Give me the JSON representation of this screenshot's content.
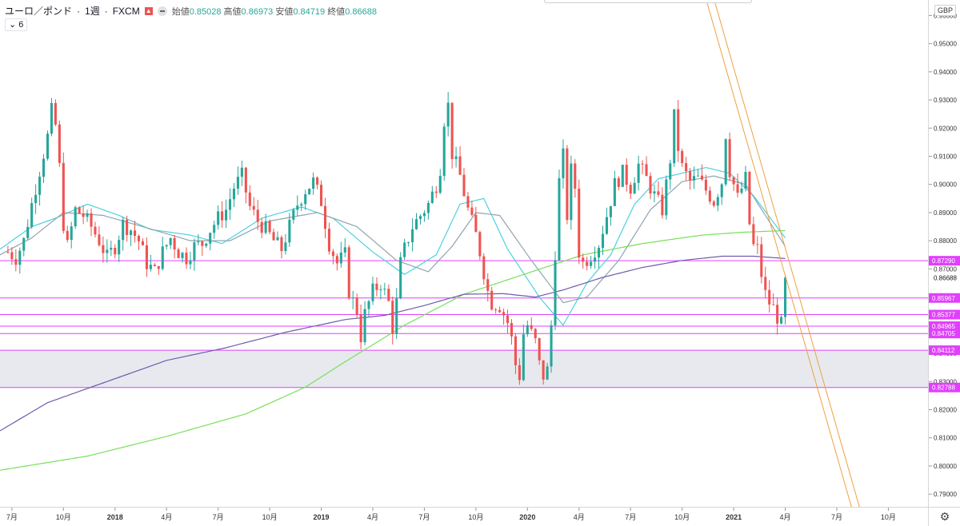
{
  "header": {
    "symbol": "ユーロ／ポンド",
    "interval": "1週",
    "source": "FXCM",
    "open_label": "始値",
    "open": "0.85028",
    "high_label": "高値",
    "high": "0.86973",
    "low_label": "安値",
    "low": "0.84719",
    "close_label": "終値",
    "close": "0.86688",
    "indicator_toggle": "6"
  },
  "axis": {
    "currency": "GBP",
    "settings_icon": "gear-icon"
  },
  "chart_data": {
    "type": "line",
    "subtype": "candlestick",
    "yaxis_ticks": [
      "0.96000",
      "0.95000",
      "0.94000",
      "0.93000",
      "0.92000",
      "0.91000",
      "0.90000",
      "0.89000",
      "0.88000",
      "0.87000",
      "0.86000",
      "0.85000",
      "0.84000",
      "0.83000",
      "0.82000",
      "0.81000",
      "0.80000",
      "0.79000"
    ],
    "ylim": [
      0.7855,
      0.9655
    ],
    "xaxis_ticks": [
      {
        "label": "7月",
        "week": 1
      },
      {
        "label": "10月",
        "week": 14
      },
      {
        "label": "2018",
        "week": 27
      },
      {
        "label": "4月",
        "week": 40
      },
      {
        "label": "7月",
        "week": 53
      },
      {
        "label": "10月",
        "week": 66
      },
      {
        "label": "2019",
        "week": 79
      },
      {
        "label": "4月",
        "week": 92
      },
      {
        "label": "7月",
        "week": 105
      },
      {
        "label": "10月",
        "week": 118
      },
      {
        "label": "2020",
        "week": 131
      },
      {
        "label": "4月",
        "week": 144
      },
      {
        "label": "7月",
        "week": 157
      },
      {
        "label": "10月",
        "week": 170
      },
      {
        "label": "2021",
        "week": 183
      },
      {
        "label": "4月",
        "week": 196
      },
      {
        "label": "7月",
        "week": 209
      },
      {
        "label": "10月",
        "week": 222
      }
    ],
    "xlim": [
      -2,
      232
    ],
    "last_price": "0.86688",
    "horizontal_levels": [
      {
        "label": "0.87290",
        "value": 0.8729
      },
      {
        "label": "0.85967",
        "value": 0.85967
      },
      {
        "label": "0.85377",
        "value": 0.85377
      },
      {
        "label": "0.84965",
        "value": 0.84965
      },
      {
        "label": "0.84705",
        "value": 0.84705
      },
      {
        "label": "0.84112",
        "value": 0.84112
      },
      {
        "label": "0.82788",
        "value": 0.82788
      }
    ],
    "zone": {
      "from": 0.82788,
      "to": 0.84112
    },
    "trendlines": [
      {
        "x1": 176,
        "y1": 0.966,
        "x2": 213,
        "y2": 0.784
      },
      {
        "x1": 178,
        "y1": 0.966,
        "x2": 215,
        "y2": 0.784
      }
    ],
    "ma_anchors": {
      "ma_fast": [
        [
          -2,
          0.877
        ],
        [
          6,
          0.885
        ],
        [
          12,
          0.888
        ],
        [
          20,
          0.893
        ],
        [
          28,
          0.889
        ],
        [
          36,
          0.884
        ],
        [
          46,
          0.882
        ],
        [
          54,
          0.879
        ],
        [
          64,
          0.888
        ],
        [
          74,
          0.892
        ],
        [
          82,
          0.888
        ],
        [
          92,
          0.876
        ],
        [
          100,
          0.868
        ],
        [
          108,
          0.875
        ],
        [
          114,
          0.893
        ],
        [
          120,
          0.895
        ],
        [
          126,
          0.877
        ],
        [
          134,
          0.86
        ],
        [
          140,
          0.85
        ],
        [
          146,
          0.865
        ],
        [
          152,
          0.875
        ],
        [
          158,
          0.893
        ],
        [
          164,
          0.902
        ],
        [
          170,
          0.904
        ],
        [
          176,
          0.906
        ],
        [
          182,
          0.904
        ],
        [
          188,
          0.896
        ],
        [
          196,
          0.881
        ]
      ],
      "ma_slow": [
        [
          -2,
          0.875
        ],
        [
          6,
          0.881
        ],
        [
          14,
          0.89
        ],
        [
          24,
          0.889
        ],
        [
          34,
          0.885
        ],
        [
          46,
          0.88
        ],
        [
          56,
          0.88
        ],
        [
          66,
          0.887
        ],
        [
          78,
          0.89
        ],
        [
          88,
          0.885
        ],
        [
          98,
          0.873
        ],
        [
          106,
          0.869
        ],
        [
          112,
          0.878
        ],
        [
          118,
          0.89
        ],
        [
          124,
          0.889
        ],
        [
          132,
          0.873
        ],
        [
          140,
          0.858
        ],
        [
          146,
          0.86
        ],
        [
          154,
          0.873
        ],
        [
          162,
          0.891
        ],
        [
          170,
          0.901
        ],
        [
          178,
          0.903
        ],
        [
          186,
          0.9
        ],
        [
          196,
          0.878
        ]
      ],
      "ma_200": [
        [
          -2,
          0.7985
        ],
        [
          20,
          0.8035
        ],
        [
          40,
          0.8105
        ],
        [
          60,
          0.8185
        ],
        [
          75,
          0.828
        ],
        [
          85,
          0.837
        ],
        [
          100,
          0.85
        ],
        [
          115,
          0.861
        ],
        [
          130,
          0.868
        ],
        [
          145,
          0.875
        ],
        [
          160,
          0.879
        ],
        [
          175,
          0.882
        ],
        [
          185,
          0.883
        ],
        [
          196,
          0.8836
        ]
      ],
      "ma_100": [
        [
          -2,
          0.8125
        ],
        [
          10,
          0.8225
        ],
        [
          25,
          0.83
        ],
        [
          40,
          0.8375
        ],
        [
          55,
          0.842
        ],
        [
          70,
          0.8475
        ],
        [
          85,
          0.852
        ],
        [
          95,
          0.8535
        ],
        [
          105,
          0.857
        ],
        [
          115,
          0.861
        ],
        [
          125,
          0.8612
        ],
        [
          133,
          0.86
        ],
        [
          140,
          0.8625
        ],
        [
          150,
          0.867
        ],
        [
          160,
          0.8705
        ],
        [
          170,
          0.873
        ],
        [
          180,
          0.8745
        ],
        [
          188,
          0.8745
        ],
        [
          196,
          0.8737
        ]
      ]
    },
    "price_path": [
      [
        0,
        0.876
      ],
      [
        2,
        0.874
      ],
      [
        4,
        0.88
      ],
      [
        6,
        0.893
      ],
      [
        8,
        0.905
      ],
      [
        10,
        0.917
      ],
      [
        11,
        0.926
      ],
      [
        12,
        0.921
      ],
      [
        13,
        0.906
      ],
      [
        14,
        0.886
      ],
      [
        15,
        0.878
      ],
      [
        17,
        0.891
      ],
      [
        19,
        0.889
      ],
      [
        21,
        0.885
      ],
      [
        23,
        0.88
      ],
      [
        25,
        0.874
      ],
      [
        27,
        0.878
      ],
      [
        29,
        0.886
      ],
      [
        31,
        0.884
      ],
      [
        33,
        0.88
      ],
      [
        35,
        0.872
      ],
      [
        37,
        0.869
      ],
      [
        39,
        0.876
      ],
      [
        41,
        0.881
      ],
      [
        43,
        0.876
      ],
      [
        45,
        0.874
      ],
      [
        47,
        0.878
      ],
      [
        49,
        0.879
      ],
      [
        51,
        0.884
      ],
      [
        53,
        0.888
      ],
      [
        55,
        0.891
      ],
      [
        57,
        0.899
      ],
      [
        59,
        0.903
      ],
      [
        61,
        0.892
      ],
      [
        63,
        0.887
      ],
      [
        65,
        0.884
      ],
      [
        67,
        0.88
      ],
      [
        69,
        0.877
      ],
      [
        71,
        0.885
      ],
      [
        73,
        0.893
      ],
      [
        75,
        0.898
      ],
      [
        77,
        0.901
      ],
      [
        79,
        0.894
      ],
      [
        81,
        0.879
      ],
      [
        83,
        0.872
      ],
      [
        85,
        0.875
      ],
      [
        86,
        0.862
      ],
      [
        88,
        0.855
      ],
      [
        89,
        0.846
      ],
      [
        90,
        0.854
      ],
      [
        92,
        0.862
      ],
      [
        94,
        0.865
      ],
      [
        96,
        0.858
      ],
      [
        97,
        0.849
      ],
      [
        98,
        0.858
      ],
      [
        99,
        0.872
      ],
      [
        100,
        0.877
      ],
      [
        102,
        0.885
      ],
      [
        104,
        0.889
      ],
      [
        106,
        0.893
      ],
      [
        108,
        0.9
      ],
      [
        109,
        0.906
      ],
      [
        110,
        0.923
      ],
      [
        111,
        0.928
      ],
      [
        112,
        0.911
      ],
      [
        114,
        0.903
      ],
      [
        116,
        0.891
      ],
      [
        118,
        0.882
      ],
      [
        119,
        0.876
      ],
      [
        121,
        0.862
      ],
      [
        122,
        0.858
      ],
      [
        124,
        0.857
      ],
      [
        126,
        0.851
      ],
      [
        127,
        0.845
      ],
      [
        128,
        0.836
      ],
      [
        129,
        0.832
      ],
      [
        130,
        0.847
      ],
      [
        131,
        0.85
      ],
      [
        133,
        0.844
      ],
      [
        134,
        0.836
      ],
      [
        135,
        0.832
      ],
      [
        136,
        0.834
      ],
      [
        137,
        0.85
      ],
      [
        138,
        0.876
      ],
      [
        139,
        0.901
      ],
      [
        140,
        0.91
      ],
      [
        141,
        0.889
      ],
      [
        142,
        0.905
      ],
      [
        143,
        0.899
      ],
      [
        144,
        0.876
      ],
      [
        145,
        0.872
      ],
      [
        147,
        0.875
      ],
      [
        149,
        0.879
      ],
      [
        151,
        0.889
      ],
      [
        153,
        0.9
      ],
      [
        155,
        0.904
      ],
      [
        157,
        0.899
      ],
      [
        159,
        0.907
      ],
      [
        161,
        0.902
      ],
      [
        163,
        0.896
      ],
      [
        165,
        0.891
      ],
      [
        167,
        0.909
      ],
      [
        168,
        0.924
      ],
      [
        169,
        0.913
      ],
      [
        170,
        0.906
      ],
      [
        172,
        0.901
      ],
      [
        174,
        0.902
      ],
      [
        176,
        0.898
      ],
      [
        178,
        0.894
      ],
      [
        180,
        0.901
      ],
      [
        181,
        0.918
      ],
      [
        182,
        0.905
      ],
      [
        184,
        0.895
      ],
      [
        186,
        0.902
      ],
      [
        187,
        0.886
      ],
      [
        188,
        0.878
      ],
      [
        189,
        0.877
      ],
      [
        190,
        0.868
      ],
      [
        191,
        0.861
      ],
      [
        192,
        0.858
      ],
      [
        193,
        0.856
      ],
      [
        194,
        0.853
      ],
      [
        195,
        0.85
      ],
      [
        196,
        0.867
      ]
    ],
    "series": [
      {
        "key": "candles",
        "color_up": "#26a69a",
        "color_down": "#ef5350"
      },
      {
        "key": "ma_fast",
        "color": "#4dd0e1"
      },
      {
        "key": "ma_slow",
        "color": "#90a4ae"
      },
      {
        "key": "ma_200",
        "color": "#76e05a"
      },
      {
        "key": "ma_100",
        "color": "#6d5bb0"
      }
    ],
    "colors": {
      "level": "#e040fb",
      "zone": "#e7e9ee",
      "trend": "#f0a040",
      "grid": "#f0f3fa"
    },
    "grid": false
  }
}
